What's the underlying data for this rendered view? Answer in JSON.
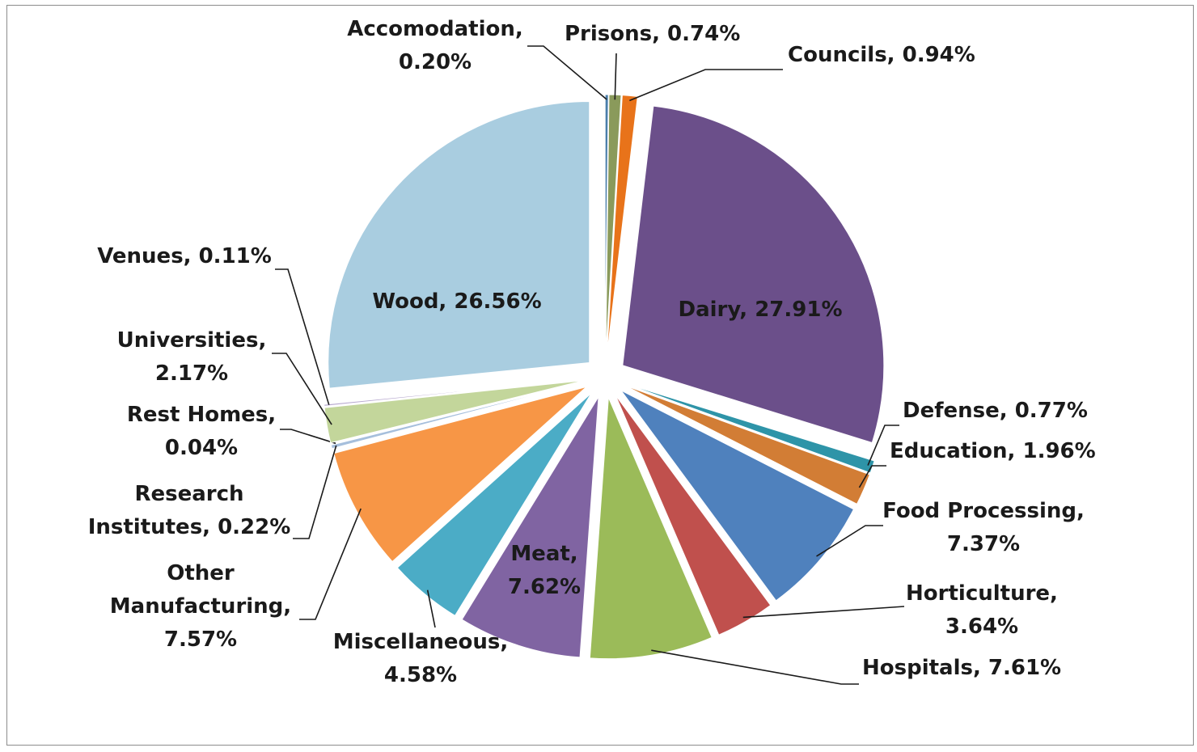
{
  "chart_data": {
    "type": "pie",
    "title": "",
    "categories": [
      "Accomodation",
      "Prisons",
      "Councils",
      "Dairy",
      "Defense",
      "Education",
      "Food Processing",
      "Horticulture",
      "Hospitals",
      "Meat",
      "Miscellaneous",
      "Other Manufacturing",
      "Research Institutes",
      "Rest Homes",
      "Universities",
      "Venues",
      "Wood"
    ],
    "values": [
      0.2,
      0.74,
      0.94,
      27.91,
      0.77,
      1.96,
      7.37,
      3.64,
      7.61,
      7.62,
      4.58,
      7.57,
      0.22,
      0.04,
      2.17,
      0.11,
      26.56
    ],
    "colors": [
      "#4a7eab",
      "#8a9a5b",
      "#e8731a",
      "#6b4f8a",
      "#2e94a8",
      "#d27d35",
      "#4f81bd",
      "#c0504d",
      "#9bbb59",
      "#8064a2",
      "#4bacc6",
      "#f79646",
      "#a6bfdc",
      "#c5d9a4",
      "#c3d69b",
      "#b7a8cf",
      "#a9cde0"
    ],
    "data_labels": [
      [
        "Accomodation,",
        "0.20%"
      ],
      [
        "Prisons, 0.74%"
      ],
      [
        "Councils, 0.94%"
      ],
      [
        "Dairy, 27.91%"
      ],
      [
        "Defense, 0.77%"
      ],
      [
        "Education, 1.96%"
      ],
      [
        "Food Processing,",
        "7.37%"
      ],
      [
        "Horticulture,",
        "3.64%"
      ],
      [
        "Hospitals, 7.61%"
      ],
      [
        "Meat,",
        "7.62%"
      ],
      [
        "Miscellaneous,",
        "4.58%"
      ],
      [
        "Other",
        "Manufacturing,",
        "7.57%"
      ],
      [
        "Research",
        "Institutes, 0.22%"
      ],
      [
        "Rest Homes,",
        "0.04%"
      ],
      [
        "Universities,",
        "2.17%"
      ],
      [
        "Venues, 0.11%"
      ],
      [
        "Wood, 26.56%"
      ]
    ],
    "exploded": true,
    "legend": "none"
  }
}
